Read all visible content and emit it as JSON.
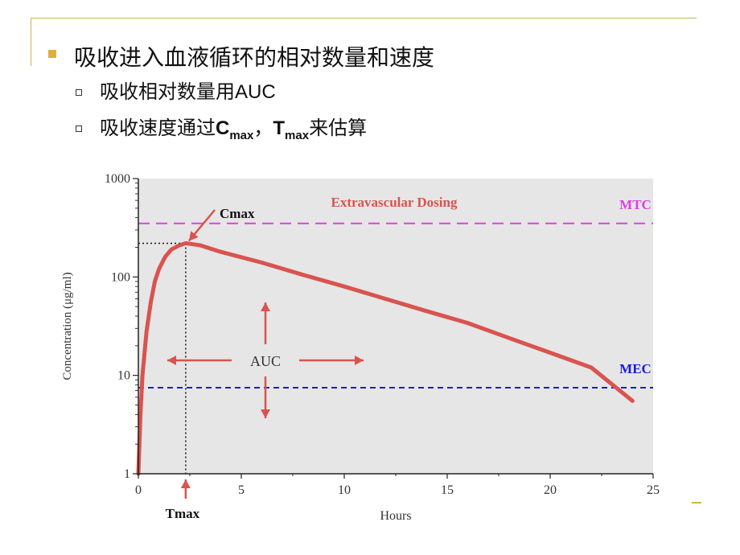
{
  "slide": {
    "heading": "吸收进入血液循环的相对数量和速度",
    "sub1": "吸收相对数量用AUC",
    "sub2_prefix": "吸收速度通过",
    "sub2_c": "C",
    "sub2_c_sub": "max",
    "sub2_sep": "，",
    "sub2_t": "T",
    "sub2_t_sub": "max",
    "sub2_suffix": "来估算"
  },
  "colors": {
    "curve": "#d9534f",
    "mtc": "#e040e0",
    "mec": "#1a1adc",
    "plot_bg": "#e6e6e6",
    "accent": "#d9b13c"
  },
  "chart_data": {
    "type": "line",
    "title": "Extravascular Dosing",
    "xlabel": "Hours",
    "ylabel": "Concentration (μg/ml)",
    "x_scale": "linear",
    "y_scale": "log",
    "xlim": [
      0,
      25
    ],
    "ylim": [
      1,
      1000
    ],
    "x_ticks": [
      "0",
      "5",
      "10",
      "15",
      "20",
      "25"
    ],
    "y_ticks": [
      "1",
      "10",
      "100",
      "1000"
    ],
    "x_tick_values": [
      0,
      5,
      10,
      15,
      20,
      25
    ],
    "y_tick_values": [
      1,
      10,
      100,
      1000
    ],
    "grid": false,
    "series": [
      {
        "x": [
          0,
          0.1,
          0.2,
          0.4,
          0.6,
          0.8,
          1.0,
          1.3,
          1.6,
          2.0,
          2.3,
          3,
          4,
          6,
          8,
          10,
          12,
          14,
          16,
          18,
          20,
          22,
          24
        ],
        "y": [
          1,
          4,
          10,
          28,
          55,
          90,
          120,
          160,
          190,
          210,
          220,
          210,
          180,
          140,
          105,
          80,
          60,
          45,
          34,
          24,
          17,
          12,
          5.5
        ]
      }
    ],
    "reference_lines": [
      {
        "label": "MTC",
        "y": 350,
        "style": "dashed"
      },
      {
        "label": "MEC",
        "y": 7.5,
        "style": "dashed"
      }
    ],
    "annotations": {
      "cmax_label": "Cmax",
      "tmax_label": "Tmax",
      "auc_label": "AUC",
      "cmax": {
        "x": 2.3,
        "y": 220
      }
    }
  }
}
